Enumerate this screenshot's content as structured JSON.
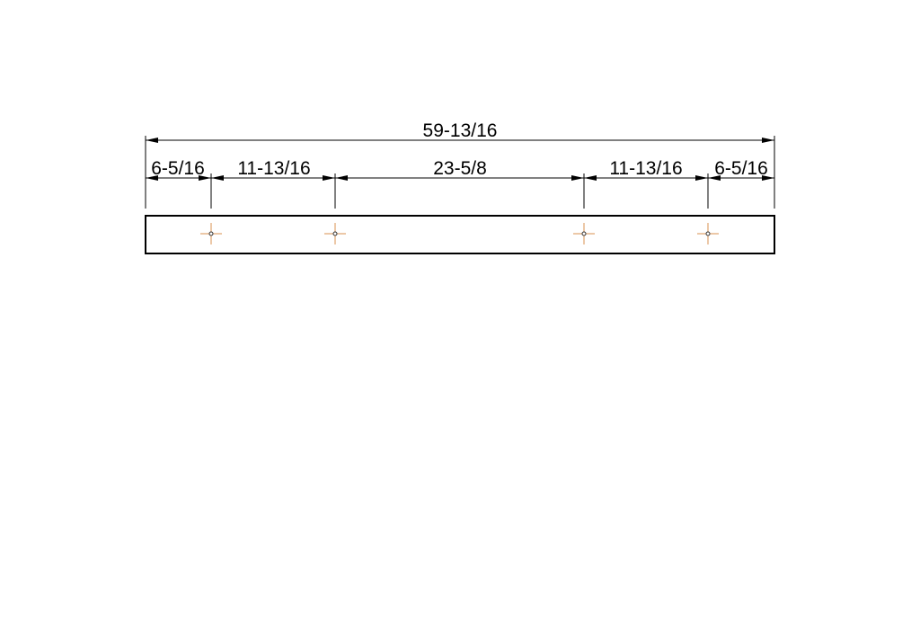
{
  "drawing": {
    "overall_dimension": "59-13/16",
    "segment_dimensions": [
      "6-5/16",
      "11-13/16",
      "23-5/8",
      "11-13/16",
      "6-5/16"
    ],
    "hole_count": 4,
    "colors": {
      "line": "#000000",
      "hole_marker": "#d9924f",
      "background": "#ffffff"
    }
  }
}
